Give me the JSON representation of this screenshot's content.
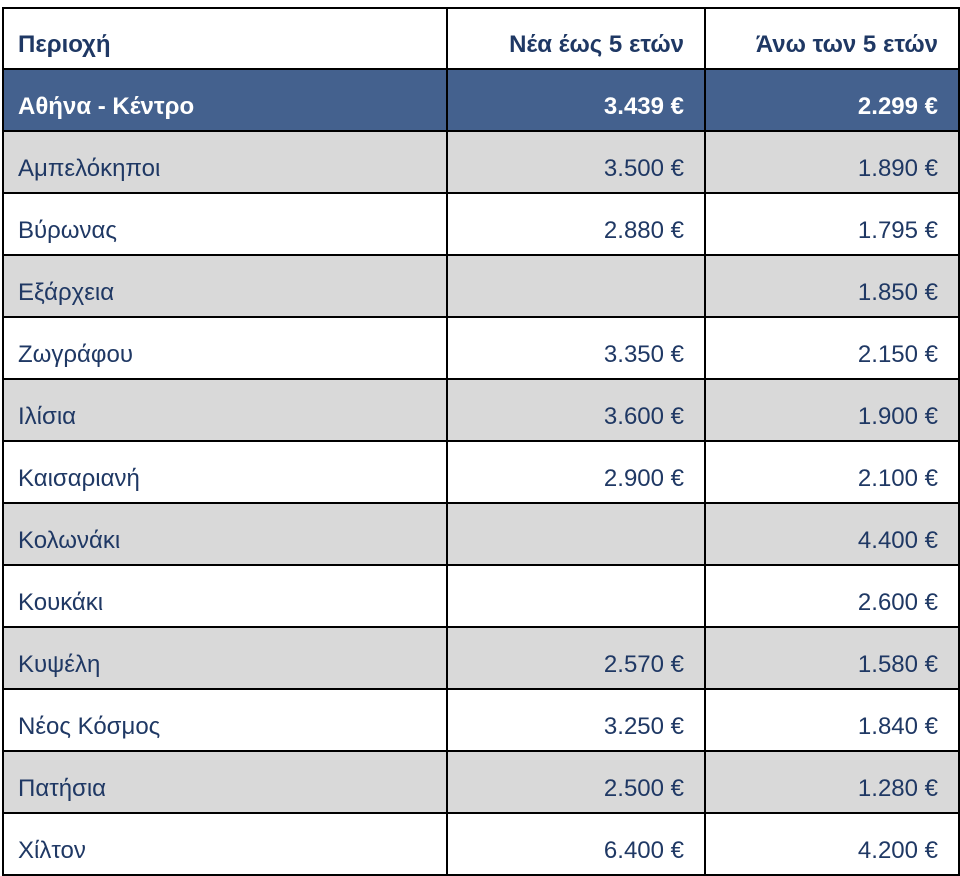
{
  "colors": {
    "accent": "#44618E",
    "gray": "#D9D9D9",
    "text": "#1F3864",
    "border": "#000000"
  },
  "chart_data": {
    "type": "table",
    "columns": [
      "Περιοχή",
      "Νέα έως 5 ετών",
      "Άνω των 5 ετών"
    ],
    "currency": "EUR",
    "rows": [
      {
        "region": "Αθήνα - Κέντρο",
        "new_price": "3.439 €",
        "old_price": "2.299 €",
        "new_value": 3439,
        "old_value": 2299,
        "highlight": true
      },
      {
        "region": "Αμπελόκηποι",
        "new_price": "3.500 €",
        "old_price": "1.890 €",
        "new_value": 3500,
        "old_value": 1890,
        "highlight": false
      },
      {
        "region": "Βύρωνας",
        "new_price": "2.880 €",
        "old_price": "1.795 €",
        "new_value": 2880,
        "old_value": 1795,
        "highlight": false
      },
      {
        "region": "Εξάρχεια",
        "new_price": "",
        "old_price": "1.850 €",
        "new_value": null,
        "old_value": 1850,
        "highlight": false
      },
      {
        "region": "Ζωγράφου",
        "new_price": "3.350 €",
        "old_price": "2.150 €",
        "new_value": 3350,
        "old_value": 2150,
        "highlight": false
      },
      {
        "region": "Ιλίσια",
        "new_price": "3.600 €",
        "old_price": "1.900 €",
        "new_value": 3600,
        "old_value": 1900,
        "highlight": false
      },
      {
        "region": "Καισαριανή",
        "new_price": "2.900 €",
        "old_price": "2.100 €",
        "new_value": 2900,
        "old_value": 2100,
        "highlight": false
      },
      {
        "region": "Κολωνάκι",
        "new_price": "",
        "old_price": "4.400 €",
        "new_value": null,
        "old_value": 4400,
        "highlight": false
      },
      {
        "region": "Κουκάκι",
        "new_price": "",
        "old_price": "2.600 €",
        "new_value": null,
        "old_value": 2600,
        "highlight": false
      },
      {
        "region": "Κυψέλη",
        "new_price": "2.570 €",
        "old_price": "1.580 €",
        "new_value": 2570,
        "old_value": 1580,
        "highlight": false
      },
      {
        "region": "Νέος Κόσμος",
        "new_price": "3.250 €",
        "old_price": "1.840 €",
        "new_value": 3250,
        "old_value": 1840,
        "highlight": false
      },
      {
        "region": "Πατήσια",
        "new_price": "2.500 €",
        "old_price": "1.280 €",
        "new_value": 2500,
        "old_value": 1280,
        "highlight": false
      },
      {
        "region": "Χίλτον",
        "new_price": "6.400 €",
        "old_price": "4.200 €",
        "new_value": 6400,
        "old_value": 4200,
        "highlight": false
      }
    ]
  }
}
